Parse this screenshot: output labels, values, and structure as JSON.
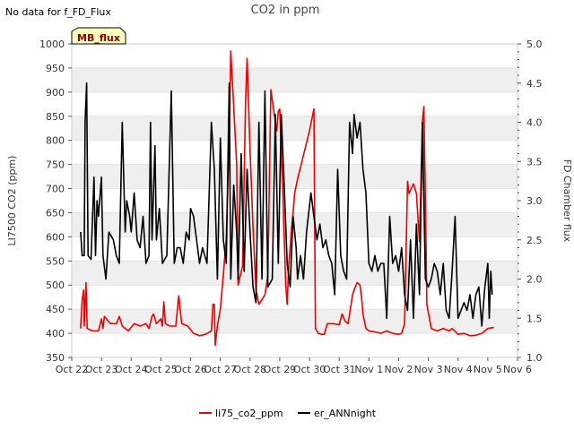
{
  "chart_data": {
    "type": "line",
    "title": "CO2 in ppm",
    "note": "No data for f_FD_Flux",
    "flag": "MB_flux",
    "ylabel": "LI7500 CO2 (ppm)",
    "ylabel_right": "FD Chamber flux",
    "ylim": [
      350,
      1000
    ],
    "y_ticks": [
      350,
      400,
      450,
      500,
      550,
      600,
      650,
      700,
      750,
      800,
      850,
      900,
      950,
      1000
    ],
    "ylim_right": [
      1.0,
      5.0
    ],
    "y_ticks_right": [
      "1.0",
      "1.5",
      "2.0",
      "2.5",
      "3.0",
      "3.5",
      "4.0",
      "4.5",
      "5.0"
    ],
    "xlim": [
      0,
      15
    ],
    "x_ticks": [
      "Oct 22",
      "Oct 23",
      "Oct 24",
      "Oct 25",
      "Oct 26",
      "Oct 27",
      "Oct 28",
      "Oct 29",
      "Oct 30",
      "Oct 31",
      "Nov 1",
      "Nov 2",
      "Nov 3",
      "Nov 4",
      "Nov 5",
      "Nov 6"
    ],
    "series": [
      {
        "name": "li75_co2_ppm",
        "color": "#ee0000",
        "points": [
          [
            0.3,
            410
          ],
          [
            0.35,
            470
          ],
          [
            0.4,
            490
          ],
          [
            0.42,
            415
          ],
          [
            0.48,
            505
          ],
          [
            0.52,
            410
          ],
          [
            0.7,
            405
          ],
          [
            0.9,
            405
          ],
          [
            1.0,
            430
          ],
          [
            1.05,
            410
          ],
          [
            1.1,
            435
          ],
          [
            1.3,
            420
          ],
          [
            1.5,
            420
          ],
          [
            1.6,
            435
          ],
          [
            1.7,
            415
          ],
          [
            1.9,
            405
          ],
          [
            2.1,
            420
          ],
          [
            2.3,
            415
          ],
          [
            2.5,
            420
          ],
          [
            2.6,
            410
          ],
          [
            2.7,
            435
          ],
          [
            2.75,
            440
          ],
          [
            2.85,
            420
          ],
          [
            3.0,
            430
          ],
          [
            3.05,
            415
          ],
          [
            3.1,
            465
          ],
          [
            3.15,
            420
          ],
          [
            3.3,
            415
          ],
          [
            3.5,
            415
          ],
          [
            3.6,
            478
          ],
          [
            3.7,
            420
          ],
          [
            3.9,
            415
          ],
          [
            4.1,
            400
          ],
          [
            4.3,
            395
          ],
          [
            4.5,
            398
          ],
          [
            4.7,
            405
          ],
          [
            4.75,
            460
          ],
          [
            4.8,
            460
          ],
          [
            4.83,
            375
          ],
          [
            4.9,
            415
          ],
          [
            5.0,
            450
          ],
          [
            5.1,
            520
          ],
          [
            5.2,
            600
          ],
          [
            5.3,
            800
          ],
          [
            5.35,
            985
          ],
          [
            5.45,
            870
          ],
          [
            5.55,
            750
          ],
          [
            5.6,
            500
          ],
          [
            5.75,
            540
          ],
          [
            5.85,
            880
          ],
          [
            5.9,
            970
          ],
          [
            6.0,
            780
          ],
          [
            6.1,
            620
          ],
          [
            6.2,
            490
          ],
          [
            6.3,
            460
          ],
          [
            6.4,
            470
          ],
          [
            6.5,
            480
          ],
          [
            6.6,
            520
          ],
          [
            6.7,
            905
          ],
          [
            6.8,
            860
          ],
          [
            6.9,
            820
          ],
          [
            6.95,
            860
          ],
          [
            7.0,
            865
          ],
          [
            7.1,
            700
          ],
          [
            7.2,
            500
          ],
          [
            7.25,
            460
          ],
          [
            7.3,
            540
          ],
          [
            7.4,
            620
          ],
          [
            7.45,
            650
          ],
          [
            7.5,
            690
          ],
          [
            7.6,
            720
          ],
          [
            8.0,
            820
          ],
          [
            8.15,
            865
          ],
          [
            8.2,
            410
          ],
          [
            8.3,
            400
          ],
          [
            8.4,
            398
          ],
          [
            8.5,
            398
          ],
          [
            8.6,
            420
          ],
          [
            8.8,
            420
          ],
          [
            9.0,
            418
          ],
          [
            9.1,
            440
          ],
          [
            9.2,
            425
          ],
          [
            9.3,
            420
          ],
          [
            9.45,
            480
          ],
          [
            9.5,
            490
          ],
          [
            9.6,
            505
          ],
          [
            9.7,
            500
          ],
          [
            9.75,
            475
          ],
          [
            9.8,
            440
          ],
          [
            9.9,
            410
          ],
          [
            10.0,
            405
          ],
          [
            10.2,
            403
          ],
          [
            10.4,
            400
          ],
          [
            10.6,
            405
          ],
          [
            10.8,
            400
          ],
          [
            11.0,
            398
          ],
          [
            11.1,
            400
          ],
          [
            11.2,
            420
          ],
          [
            11.3,
            715
          ],
          [
            11.35,
            690
          ],
          [
            11.5,
            710
          ],
          [
            11.6,
            690
          ],
          [
            11.7,
            590
          ],
          [
            11.8,
            840
          ],
          [
            11.85,
            870
          ],
          [
            11.9,
            680
          ],
          [
            11.95,
            460
          ],
          [
            12.1,
            410
          ],
          [
            12.3,
            405
          ],
          [
            12.5,
            410
          ],
          [
            12.7,
            405
          ],
          [
            12.8,
            410
          ],
          [
            13.0,
            398
          ],
          [
            13.2,
            400
          ],
          [
            13.4,
            395
          ],
          [
            13.6,
            396
          ],
          [
            13.8,
            400
          ],
          [
            14.0,
            410
          ],
          [
            14.2,
            412
          ]
        ]
      },
      {
        "name": "er_ANNnight",
        "color": "#000000",
        "points": [
          [
            0.3,
            2.6
          ],
          [
            0.35,
            2.3
          ],
          [
            0.42,
            2.3
          ],
          [
            0.45,
            4.0
          ],
          [
            0.5,
            4.5
          ],
          [
            0.55,
            2.3
          ],
          [
            0.65,
            2.25
          ],
          [
            0.75,
            3.3
          ],
          [
            0.8,
            2.3
          ],
          [
            0.85,
            3.0
          ],
          [
            0.9,
            2.8
          ],
          [
            1.0,
            3.3
          ],
          [
            1.05,
            2.3
          ],
          [
            1.15,
            2.0
          ],
          [
            1.25,
            2.6
          ],
          [
            1.4,
            2.5
          ],
          [
            1.5,
            2.3
          ],
          [
            1.6,
            2.2
          ],
          [
            1.7,
            4.0
          ],
          [
            1.8,
            2.6
          ],
          [
            1.85,
            3.0
          ],
          [
            1.95,
            2.8
          ],
          [
            2.0,
            2.6
          ],
          [
            2.1,
            3.1
          ],
          [
            2.2,
            2.5
          ],
          [
            2.3,
            2.4
          ],
          [
            2.4,
            2.8
          ],
          [
            2.5,
            2.2
          ],
          [
            2.6,
            2.3
          ],
          [
            2.65,
            4.0
          ],
          [
            2.7,
            2.5
          ],
          [
            2.8,
            3.7
          ],
          [
            2.85,
            2.5
          ],
          [
            2.95,
            2.9
          ],
          [
            3.05,
            2.2
          ],
          [
            3.2,
            2.3
          ],
          [
            3.35,
            4.4
          ],
          [
            3.45,
            2.2
          ],
          [
            3.55,
            2.4
          ],
          [
            3.65,
            2.4
          ],
          [
            3.75,
            2.2
          ],
          [
            3.85,
            2.6
          ],
          [
            3.95,
            2.5
          ],
          [
            4.0,
            2.9
          ],
          [
            4.1,
            2.8
          ],
          [
            4.2,
            2.5
          ],
          [
            4.3,
            2.2
          ],
          [
            4.4,
            2.4
          ],
          [
            4.55,
            2.2
          ],
          [
            4.7,
            4.0
          ],
          [
            4.8,
            3.4
          ],
          [
            4.9,
            2.0
          ],
          [
            5.0,
            3.8
          ],
          [
            5.1,
            2.5
          ],
          [
            5.2,
            2.2
          ],
          [
            5.3,
            4.5
          ],
          [
            5.35,
            2.0
          ],
          [
            5.45,
            3.2
          ],
          [
            5.55,
            2.6
          ],
          [
            5.6,
            2.0
          ],
          [
            5.7,
            3.6
          ],
          [
            5.8,
            2.1
          ],
          [
            5.9,
            3.4
          ],
          [
            6.0,
            2.6
          ],
          [
            6.1,
            1.9
          ],
          [
            6.2,
            1.7
          ],
          [
            6.3,
            4.0
          ],
          [
            6.4,
            2.0
          ],
          [
            6.5,
            4.4
          ],
          [
            6.6,
            1.9
          ],
          [
            6.75,
            2.0
          ],
          [
            6.85,
            4.1
          ],
          [
            6.95,
            2.2
          ],
          [
            7.05,
            4.1
          ],
          [
            7.15,
            3.2
          ],
          [
            7.25,
            2.2
          ],
          [
            7.35,
            1.9
          ],
          [
            7.45,
            2.8
          ],
          [
            7.55,
            2.4
          ],
          [
            7.6,
            2.0
          ],
          [
            7.7,
            2.3
          ],
          [
            7.8,
            2.0
          ],
          [
            7.9,
            2.6
          ],
          [
            8.05,
            3.1
          ],
          [
            8.15,
            2.8
          ],
          [
            8.25,
            2.5
          ],
          [
            8.35,
            2.7
          ],
          [
            8.45,
            2.4
          ],
          [
            8.55,
            2.5
          ],
          [
            8.65,
            2.3
          ],
          [
            8.75,
            2.2
          ],
          [
            8.85,
            1.8
          ],
          [
            8.95,
            3.4
          ],
          [
            9.05,
            2.3
          ],
          [
            9.15,
            2.1
          ],
          [
            9.25,
            2.0
          ],
          [
            9.35,
            4.0
          ],
          [
            9.45,
            3.6
          ],
          [
            9.5,
            4.1
          ],
          [
            9.6,
            3.8
          ],
          [
            9.7,
            4.0
          ],
          [
            9.8,
            3.4
          ],
          [
            9.9,
            3.1
          ],
          [
            10.0,
            2.2
          ],
          [
            10.1,
            2.1
          ],
          [
            10.2,
            2.3
          ],
          [
            10.3,
            2.1
          ],
          [
            10.4,
            2.2
          ],
          [
            10.5,
            2.2
          ],
          [
            10.6,
            1.5
          ],
          [
            10.7,
            2.8
          ],
          [
            10.8,
            2.2
          ],
          [
            10.9,
            2.3
          ],
          [
            11.0,
            2.1
          ],
          [
            11.1,
            2.4
          ],
          [
            11.2,
            1.8
          ],
          [
            11.3,
            1.6
          ],
          [
            11.4,
            2.5
          ],
          [
            11.5,
            1.5
          ],
          [
            11.6,
            2.7
          ],
          [
            11.7,
            1.8
          ],
          [
            11.8,
            4.0
          ],
          [
            11.9,
            2.0
          ],
          [
            12.0,
            1.9
          ],
          [
            12.1,
            2.0
          ],
          [
            12.2,
            2.2
          ],
          [
            12.3,
            2.1
          ],
          [
            12.4,
            1.8
          ],
          [
            12.5,
            2.2
          ],
          [
            12.6,
            1.6
          ],
          [
            12.7,
            1.5
          ],
          [
            12.8,
            2.1
          ],
          [
            12.9,
            2.8
          ],
          [
            13.0,
            1.5
          ],
          [
            13.1,
            1.6
          ],
          [
            13.2,
            1.7
          ],
          [
            13.3,
            1.6
          ],
          [
            13.4,
            1.8
          ],
          [
            13.5,
            1.5
          ],
          [
            13.6,
            1.8
          ],
          [
            13.7,
            1.9
          ],
          [
            13.8,
            1.4
          ],
          [
            13.9,
            1.9
          ],
          [
            14.0,
            2.2
          ],
          [
            14.05,
            1.5
          ],
          [
            14.1,
            2.1
          ],
          [
            14.15,
            1.8
          ]
        ]
      }
    ],
    "legend": [
      {
        "name": "li75_co2_ppm",
        "color": "#ee0000"
      },
      {
        "name": "er_ANNnight",
        "color": "#000000"
      }
    ]
  }
}
